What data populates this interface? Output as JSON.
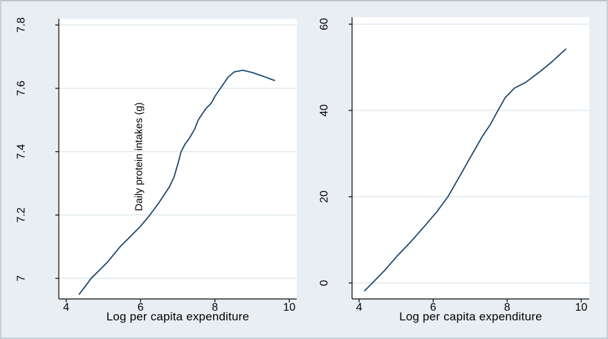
{
  "figure": {
    "background_color": "#e9eef3",
    "plot_background_color": "#ffffff",
    "grid_color": "#dfe8ed",
    "axis_color": "#000000",
    "line_color": "#1a476f",
    "border_color": "#c6cfd7"
  },
  "chart_data": [
    {
      "type": "line",
      "panel": "left",
      "title": "",
      "xlabel": "Log per capita expenditure",
      "ylabel": "Daily protein intakes (g)",
      "inner_label": "Daily protein intakes (g)",
      "inner_label_pos": {
        "x": 6.0,
        "y": 7.38
      },
      "xticks": [
        4,
        6,
        8,
        10
      ],
      "xtick_labels": [
        "4",
        "6",
        "8",
        "10"
      ],
      "yticks": [
        7,
        7.2,
        7.4,
        7.6,
        7.8
      ],
      "ytick_labels": [
        "7",
        "7.2",
        "7.4",
        "7.6",
        "7.8"
      ],
      "xlim": [
        3.8,
        10.2
      ],
      "ylim": [
        6.935,
        7.82
      ],
      "grid": true,
      "legend": "none",
      "series": [
        {
          "name": "daily-protein-intake-vs-expenditure",
          "points": [
            [
              4.35,
              6.95
            ],
            [
              4.67,
              7.0
            ],
            [
              5.1,
              7.05
            ],
            [
              5.45,
              7.1
            ],
            [
              5.75,
              7.135
            ],
            [
              6.0,
              7.165
            ],
            [
              6.25,
              7.2
            ],
            [
              6.5,
              7.24
            ],
            [
              6.78,
              7.29
            ],
            [
              6.9,
              7.32
            ],
            [
              7.0,
              7.36
            ],
            [
              7.09,
              7.4
            ],
            [
              7.2,
              7.425
            ],
            [
              7.3,
              7.44
            ],
            [
              7.45,
              7.47
            ],
            [
              7.55,
              7.5
            ],
            [
              7.75,
              7.535
            ],
            [
              7.9,
              7.553
            ],
            [
              8.0,
              7.575
            ],
            [
              8.15,
              7.6
            ],
            [
              8.35,
              7.635
            ],
            [
              8.52,
              7.652
            ],
            [
              8.75,
              7.657
            ],
            [
              9.0,
              7.65
            ],
            [
              9.3,
              7.638
            ],
            [
              9.6,
              7.625
            ]
          ]
        }
      ]
    },
    {
      "type": "line",
      "panel": "right",
      "title": "",
      "xlabel": "Log per capita expenditure",
      "xticks": [
        4,
        6,
        8,
        10
      ],
      "xtick_labels": [
        "4",
        "6",
        "8",
        "10"
      ],
      "yticks": [
        0,
        20,
        40,
        60
      ],
      "ytick_labels": [
        "0",
        "20",
        "40",
        "60"
      ],
      "xlim": [
        3.81,
        10.22
      ],
      "ylim": [
        -3.7,
        61.6
      ],
      "grid": true,
      "legend": "none",
      "series": [
        {
          "name": "protein-intake-level-vs-expenditure",
          "points": [
            [
              4.15,
              -1.8
            ],
            [
              4.36,
              0.0
            ],
            [
              4.7,
              3.0
            ],
            [
              5.0,
              6.0
            ],
            [
              5.42,
              9.8
            ],
            [
              5.75,
              13.0
            ],
            [
              6.1,
              16.5
            ],
            [
              6.4,
              20.0
            ],
            [
              6.68,
              24.2
            ],
            [
              7.05,
              29.8
            ],
            [
              7.33,
              34.0
            ],
            [
              7.55,
              36.8
            ],
            [
              7.72,
              39.5
            ],
            [
              7.95,
              43.0
            ],
            [
              8.2,
              45.2
            ],
            [
              8.5,
              46.5
            ],
            [
              8.87,
              48.9
            ],
            [
              9.2,
              51.2
            ],
            [
              9.58,
              54.2
            ]
          ]
        }
      ]
    }
  ]
}
